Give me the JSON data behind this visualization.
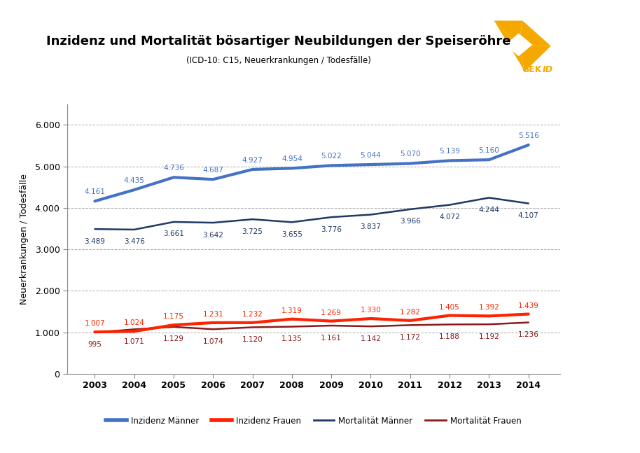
{
  "title": "Inzidenz und Mortalität bösartiger Neubildungen der Speiseröhre",
  "subtitle": "(ICD-10: C15, Neuerkrankungen / Todesfälle)",
  "ylabel": "Neuerkrankungen / Todesfälle",
  "years": [
    2003,
    2004,
    2005,
    2006,
    2007,
    2008,
    2009,
    2010,
    2011,
    2012,
    2013,
    2014
  ],
  "inzidenz_maenner": [
    4161,
    4435,
    4736,
    4687,
    4927,
    4954,
    5022,
    5044,
    5070,
    5139,
    5160,
    5516
  ],
  "inzidenz_frauen": [
    1007,
    1024,
    1175,
    1231,
    1232,
    1319,
    1269,
    1330,
    1282,
    1405,
    1392,
    1439
  ],
  "mortalitaet_maenner": [
    3489,
    3476,
    3661,
    3642,
    3725,
    3655,
    3776,
    3837,
    3966,
    4072,
    4244,
    4107
  ],
  "mortalitaet_frauen": [
    995,
    1071,
    1129,
    1074,
    1120,
    1135,
    1161,
    1142,
    1172,
    1188,
    1192,
    1236
  ],
  "inzidenz_maenner_labels": [
    "4.161",
    "4.435",
    "4.736",
    "4.687",
    "4.927",
    "4.954",
    "5.022",
    "5.044",
    "5.070",
    "5.139",
    "5.160",
    "5.516"
  ],
  "inzidenz_frauen_labels": [
    "1.007",
    "1.024",
    "1.175",
    "1.231",
    "1.232",
    "1.319",
    "1.269",
    "1.330",
    "1.282",
    "1.405",
    "1.392",
    "1.439"
  ],
  "mortalitaet_maenner_labels": [
    "3.489",
    "3.476",
    "3.661",
    "3.642",
    "3.725",
    "3.655",
    "3.776",
    "3.837",
    "3.966",
    "4.072",
    "4.244",
    "4.107"
  ],
  "mortalitaet_frauen_labels": [
    "995",
    "1.071",
    "1.129",
    "1.074",
    "1.120",
    "1.135",
    "1.161",
    "1.142",
    "1.172",
    "1.188",
    "1.192",
    "1.236"
  ],
  "color_inzidenz_maenner": "#4472C4",
  "color_inzidenz_frauen": "#FF2200",
  "color_mortalitaet_maenner": "#1F3864",
  "color_mortalitaet_frauen": "#8B1A1A",
  "ylim": [
    0,
    6500
  ],
  "yticks": [
    0,
    1000,
    2000,
    3000,
    4000,
    5000,
    6000
  ],
  "ytick_labels": [
    "0",
    "1.000",
    "2.000",
    "3.000",
    "4.000",
    "5.000",
    "6.000"
  ],
  "background_color": "#FFFFFF",
  "plot_bg_color": "#FFFFFF",
  "grid_color": "#AAAAAA",
  "legend_labels": [
    "Inzidenz Männer",
    "Inzidenz Frauen",
    "Mortalität Männer",
    "Mortalität Frauen"
  ],
  "logo_orange": "#F5A800",
  "logo_white": "#FFFFFF"
}
